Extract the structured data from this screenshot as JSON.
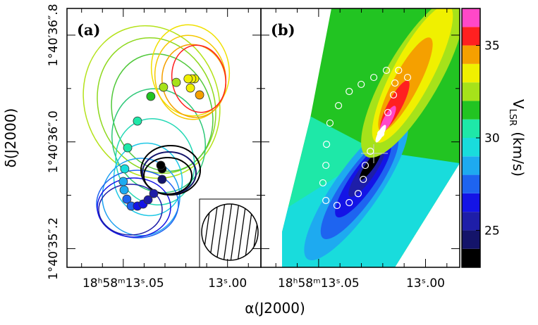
{
  "chart_data": [
    {
      "type": "scatter",
      "panel_label": "(a)",
      "xlim": [
        13.077,
        12.984
      ],
      "ylim": [
        35.06,
        37.0
      ],
      "xticks": [
        {
          "value": 13.05,
          "label": "18ʰ58ᵐ13ˢ.05"
        },
        {
          "value": 13.0,
          "label": "13ˢ.00"
        }
      ],
      "xminorticks": [
        13.07,
        13.06,
        13.04,
        13.03,
        13.02,
        13.01,
        12.99
      ],
      "yticks": [
        {
          "value": 36.8,
          "label": "1°40′36″.8"
        },
        {
          "value": 36.0,
          "label": "1°40′36″.0"
        },
        {
          "value": 35.2,
          "label": "1°40′35″.2"
        }
      ],
      "yminorticks": [
        36.4,
        35.6
      ],
      "x": [
        13.0134,
        13.0158,
        13.0172,
        13.0189,
        13.0178,
        13.0246,
        13.0307,
        13.0368,
        13.0432,
        13.0479,
        13.0493,
        13.05,
        13.0496,
        13.0483,
        13.0462,
        13.0432,
        13.0405,
        13.0381,
        13.0354,
        13.0314,
        13.0314,
        13.032
      ],
      "y": [
        36.352,
        36.473,
        36.473,
        36.473,
        36.404,
        36.446,
        36.41,
        36.341,
        36.156,
        35.956,
        35.798,
        35.703,
        35.64,
        35.571,
        35.519,
        35.519,
        35.534,
        35.566,
        35.613,
        35.719,
        35.798,
        35.824
      ],
      "v": [
        34.5,
        33.6,
        33.5,
        33.2,
        33.5,
        32.5,
        32.0,
        31.0,
        30.5,
        30.2,
        29.2,
        28.6,
        28.2,
        27.6,
        27.2,
        26.6,
        26.2,
        25.6,
        25.2,
        24.6,
        23.6,
        23.2
      ]
    },
    {
      "type": "scatter",
      "panel_label": "(b)",
      "xlim": [
        13.077,
        12.984
      ],
      "ylim": [
        35.06,
        37.0
      ],
      "xticks": [
        {
          "value": 13.05,
          "label": "18ʰ58ᵐ13ˢ.05"
        },
        {
          "value": 13.0,
          "label": "13ˢ.00"
        }
      ],
      "xminorticks": [
        13.07,
        13.06,
        13.04,
        13.03,
        13.02,
        13.01,
        12.99
      ],
      "yticks": [
        36.8,
        36.0,
        35.2
      ],
      "yminorticks": [
        36.4,
        35.6
      ],
      "x": [
        13.0084,
        13.0126,
        13.0183,
        13.0242,
        13.0301,
        13.0357,
        13.0407,
        13.0447,
        13.0463,
        13.0466,
        13.048,
        13.0466,
        13.0414,
        13.0357,
        13.0315,
        13.0291,
        13.0282,
        13.0258,
        13.0209,
        13.0176,
        13.015,
        13.0143
      ],
      "y": [
        36.483,
        36.536,
        36.536,
        36.483,
        36.431,
        36.378,
        36.272,
        36.141,
        35.982,
        35.824,
        35.693,
        35.561,
        35.524,
        35.545,
        35.613,
        35.719,
        35.824,
        35.93,
        36.062,
        36.22,
        36.352,
        36.441
      ]
    }
  ],
  "figure": {
    "x_label": "α(J2000)",
    "y_label": "δ(J2000)"
  },
  "colorbar": {
    "label": "V",
    "label_sub": "LSR",
    "unit": "(km/s)",
    "ylim": [
      23,
      37
    ],
    "yticks": [
      25,
      30,
      35
    ],
    "bin_edges": [
      23,
      24,
      25,
      26,
      27,
      28,
      29,
      30,
      31,
      32,
      33,
      34,
      35,
      36,
      37
    ],
    "colors": [
      "#000000",
      "#14146a",
      "#1e1ea8",
      "#1414e6",
      "#1e64f0",
      "#1eaaf0",
      "#19dcdc",
      "#1ee8a8",
      "#22c422",
      "#a6e21a",
      "#f0f000",
      "#f5a000",
      "#ff2020",
      "#ff48c8"
    ]
  }
}
